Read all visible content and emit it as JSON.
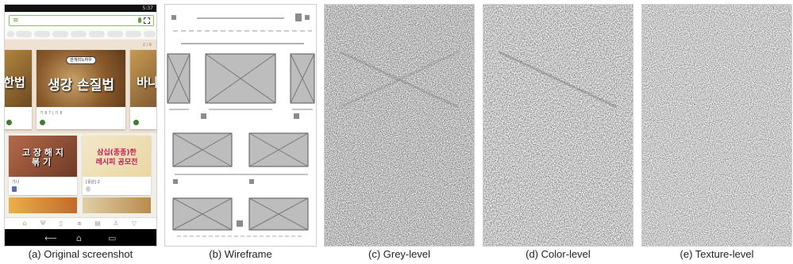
{
  "captions": {
    "a": "(a) Original screenshot",
    "b": "(b) Wireframe",
    "c": "(c) Grey-level",
    "d": "(d) Color-level",
    "e": "(e) Texture-level"
  },
  "screenshot": {
    "status_time": "5:37",
    "featured": {
      "pager": "2 / 6",
      "main_title": "생강 손질법",
      "main_badge": "만개의노하우",
      "left_title": "한법",
      "right_title": "바나",
      "meta": "기 8 7  |  기 8"
    },
    "grid": [
      {
        "title": "고 장 해 지\n볶 기 ",
        "meta": "기나"
      },
      {
        "title": "삼십(종종)한\n레시피 공모전",
        "meta": "[응원]        2"
      }
    ]
  },
  "colors": {
    "accent": "#8bc34a",
    "statusbar": "#111111",
    "featured_bg": "#efe2d2",
    "wire_fill": "#bdbdbd"
  }
}
